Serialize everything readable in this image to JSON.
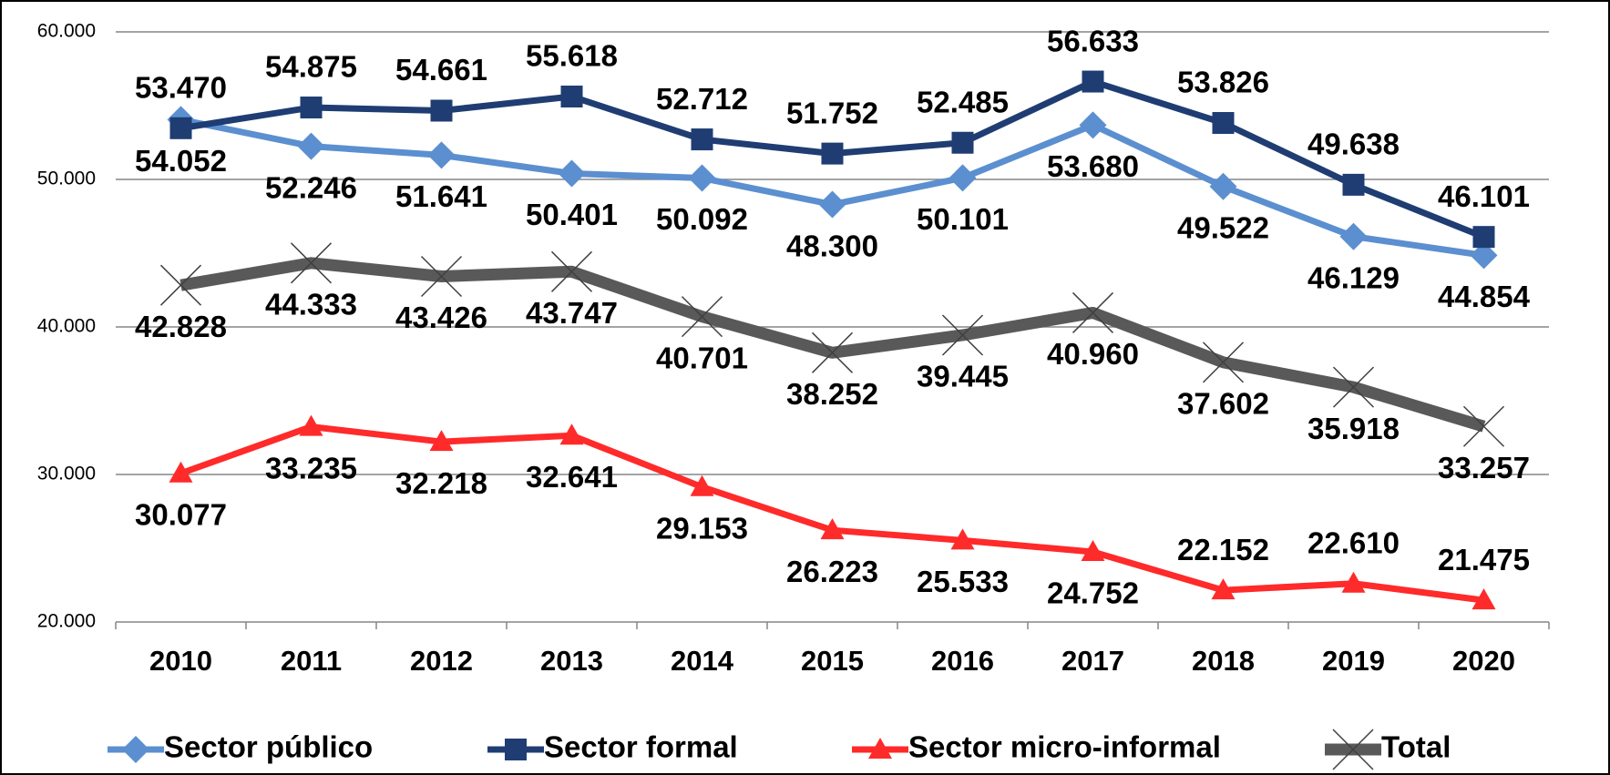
{
  "chart_data": {
    "type": "line",
    "categories": [
      "2010",
      "2011",
      "2012",
      "2013",
      "2014",
      "2015",
      "2016",
      "2017",
      "2018",
      "2019",
      "2020"
    ],
    "ylim": [
      20000,
      60000
    ],
    "yticks": [
      {
        "value": 20000,
        "label": "20.000"
      },
      {
        "value": 30000,
        "label": "30.000"
      },
      {
        "value": 40000,
        "label": "40.000"
      },
      {
        "value": 50000,
        "label": "50.000"
      },
      {
        "value": 60000,
        "label": "60.000"
      }
    ],
    "grid": true,
    "legend": "bottom",
    "series": [
      {
        "name": "Sector público",
        "color": "#5b8fd0",
        "marker": "diamond",
        "values": [
          54052,
          52246,
          51641,
          50401,
          50092,
          48300,
          50101,
          53680,
          49522,
          46129,
          44854
        ],
        "value_labels": [
          "54.052",
          "52.246",
          "51.641",
          "50.401",
          "50.092",
          "48.300",
          "50.101",
          "53.680",
          "49.522",
          "46.129",
          "44.854"
        ]
      },
      {
        "name": "Sector formal",
        "color": "#1f3d73",
        "marker": "square",
        "values": [
          53470,
          54875,
          54661,
          55618,
          52712,
          51752,
          52485,
          56633,
          53826,
          49638,
          46101
        ],
        "value_labels": [
          "53.470",
          "54.875",
          "54.661",
          "55.618",
          "52.712",
          "51.752",
          "52.485",
          "56.633",
          "53.826",
          "49.638",
          "46.101"
        ]
      },
      {
        "name": "Sector micro-informal",
        "color": "#ff2a2a",
        "marker": "triangle",
        "values": [
          30077,
          33235,
          32218,
          32641,
          29153,
          26223,
          25533,
          24752,
          22152,
          22610,
          21475
        ],
        "value_labels": [
          "30.077",
          "33.235",
          "32.218",
          "32.641",
          "29.153",
          "26.223",
          "25.533",
          "24.752",
          "22.152",
          "22.610",
          "21.475"
        ]
      },
      {
        "name": "Total",
        "color": "#595959",
        "marker": "x",
        "values": [
          42828,
          44333,
          43426,
          43747,
          40701,
          38252,
          39445,
          40960,
          37602,
          35918,
          33257
        ],
        "value_labels": [
          "42.828",
          "44.333",
          "43.426",
          "43.747",
          "40.701",
          "38.252",
          "39.445",
          "40.960",
          "37.602",
          "35.918",
          "33.257"
        ]
      }
    ]
  }
}
